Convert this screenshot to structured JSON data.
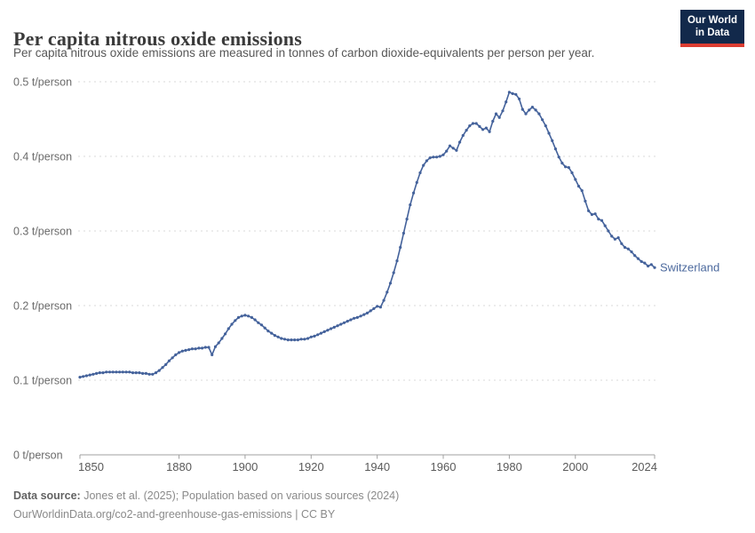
{
  "header": {
    "title": "Per capita nitrous oxide emissions",
    "subtitle": "Per capita nitrous oxide emissions are measured in tonnes of carbon dioxide-equivalents per person per year."
  },
  "logo": {
    "line1": "Our World",
    "line2": "in Data"
  },
  "footer": {
    "datasource_label": "Data source:",
    "datasource_text": " Jones et al. (2025); Population based on various sources (2024)",
    "license_text": "OurWorldinData.org/co2-and-greenhouse-gas-emissions | CC BY"
  },
  "colors": {
    "line": "#44629b",
    "series_label": "#4d6a9e",
    "gridline": "#dadada",
    "axis": "#a0a0a0",
    "tick_label": "#6b6b6b",
    "logo_bg": "#12294b",
    "logo_red": "#dc3d32"
  },
  "chart_data": {
    "type": "line",
    "title": "Per capita nitrous oxide emissions",
    "unit": "t/person",
    "xlabel": "",
    "ylabel": "t/person",
    "grid": true,
    "legend_position": "end-of-line",
    "xlim": [
      1850,
      2024
    ],
    "ylim": [
      0,
      0.5
    ],
    "x_ticks": [
      1850,
      1880,
      1900,
      1920,
      1940,
      1960,
      1980,
      2000,
      2024
    ],
    "y_ticks": [
      {
        "value": 0,
        "label": "0 t/person"
      },
      {
        "value": 0.1,
        "label": "0.1 t/person"
      },
      {
        "value": 0.2,
        "label": "0.2 t/person"
      },
      {
        "value": 0.3,
        "label": "0.3 t/person"
      },
      {
        "value": 0.4,
        "label": "0.4 t/person"
      },
      {
        "value": 0.5,
        "label": "0.5 t/person"
      }
    ],
    "series": [
      {
        "name": "Switzerland",
        "color": "#44629b",
        "points": [
          [
            1850,
            0.104
          ],
          [
            1851,
            0.105
          ],
          [
            1852,
            0.106
          ],
          [
            1853,
            0.107
          ],
          [
            1854,
            0.108
          ],
          [
            1855,
            0.109
          ],
          [
            1856,
            0.11
          ],
          [
            1857,
            0.11
          ],
          [
            1858,
            0.111
          ],
          [
            1859,
            0.111
          ],
          [
            1860,
            0.111
          ],
          [
            1861,
            0.111
          ],
          [
            1862,
            0.111
          ],
          [
            1863,
            0.111
          ],
          [
            1864,
            0.111
          ],
          [
            1865,
            0.111
          ],
          [
            1866,
            0.11
          ],
          [
            1867,
            0.11
          ],
          [
            1868,
            0.11
          ],
          [
            1869,
            0.109
          ],
          [
            1870,
            0.109
          ],
          [
            1871,
            0.108
          ],
          [
            1872,
            0.108
          ],
          [
            1873,
            0.11
          ],
          [
            1874,
            0.113
          ],
          [
            1875,
            0.117
          ],
          [
            1876,
            0.121
          ],
          [
            1877,
            0.126
          ],
          [
            1878,
            0.13
          ],
          [
            1879,
            0.134
          ],
          [
            1880,
            0.137
          ],
          [
            1881,
            0.139
          ],
          [
            1882,
            0.14
          ],
          [
            1883,
            0.141
          ],
          [
            1884,
            0.142
          ],
          [
            1885,
            0.142
          ],
          [
            1886,
            0.143
          ],
          [
            1887,
            0.143
          ],
          [
            1888,
            0.144
          ],
          [
            1889,
            0.144
          ],
          [
            1890,
            0.134
          ],
          [
            1891,
            0.145
          ],
          [
            1892,
            0.15
          ],
          [
            1893,
            0.156
          ],
          [
            1894,
            0.162
          ],
          [
            1895,
            0.169
          ],
          [
            1896,
            0.175
          ],
          [
            1897,
            0.18
          ],
          [
            1898,
            0.184
          ],
          [
            1899,
            0.186
          ],
          [
            1900,
            0.187
          ],
          [
            1901,
            0.186
          ],
          [
            1902,
            0.184
          ],
          [
            1903,
            0.181
          ],
          [
            1904,
            0.177
          ],
          [
            1905,
            0.174
          ],
          [
            1906,
            0.17
          ],
          [
            1907,
            0.166
          ],
          [
            1908,
            0.163
          ],
          [
            1909,
            0.16
          ],
          [
            1910,
            0.158
          ],
          [
            1911,
            0.156
          ],
          [
            1912,
            0.155
          ],
          [
            1913,
            0.154
          ],
          [
            1914,
            0.154
          ],
          [
            1915,
            0.154
          ],
          [
            1916,
            0.154
          ],
          [
            1917,
            0.155
          ],
          [
            1918,
            0.155
          ],
          [
            1919,
            0.156
          ],
          [
            1920,
            0.158
          ],
          [
            1921,
            0.159
          ],
          [
            1922,
            0.161
          ],
          [
            1923,
            0.163
          ],
          [
            1924,
            0.165
          ],
          [
            1925,
            0.167
          ],
          [
            1926,
            0.169
          ],
          [
            1927,
            0.171
          ],
          [
            1928,
            0.173
          ],
          [
            1929,
            0.175
          ],
          [
            1930,
            0.177
          ],
          [
            1931,
            0.179
          ],
          [
            1932,
            0.181
          ],
          [
            1933,
            0.183
          ],
          [
            1934,
            0.184
          ],
          [
            1935,
            0.186
          ],
          [
            1936,
            0.188
          ],
          [
            1937,
            0.19
          ],
          [
            1938,
            0.193
          ],
          [
            1939,
            0.196
          ],
          [
            1940,
            0.199
          ],
          [
            1941,
            0.198
          ],
          [
            1942,
            0.207
          ],
          [
            1943,
            0.218
          ],
          [
            1944,
            0.23
          ],
          [
            1945,
            0.244
          ],
          [
            1946,
            0.26
          ],
          [
            1947,
            0.278
          ],
          [
            1948,
            0.297
          ],
          [
            1949,
            0.316
          ],
          [
            1950,
            0.335
          ],
          [
            1951,
            0.351
          ],
          [
            1952,
            0.365
          ],
          [
            1953,
            0.378
          ],
          [
            1954,
            0.388
          ],
          [
            1955,
            0.394
          ],
          [
            1956,
            0.398
          ],
          [
            1957,
            0.399
          ],
          [
            1958,
            0.399
          ],
          [
            1959,
            0.4
          ],
          [
            1960,
            0.402
          ],
          [
            1961,
            0.407
          ],
          [
            1962,
            0.414
          ],
          [
            1963,
            0.411
          ],
          [
            1964,
            0.408
          ],
          [
            1965,
            0.419
          ],
          [
            1966,
            0.428
          ],
          [
            1967,
            0.435
          ],
          [
            1968,
            0.441
          ],
          [
            1969,
            0.444
          ],
          [
            1970,
            0.444
          ],
          [
            1971,
            0.44
          ],
          [
            1972,
            0.436
          ],
          [
            1973,
            0.438
          ],
          [
            1974,
            0.433
          ],
          [
            1975,
            0.447
          ],
          [
            1976,
            0.457
          ],
          [
            1977,
            0.452
          ],
          [
            1978,
            0.461
          ],
          [
            1979,
            0.473
          ],
          [
            1980,
            0.486
          ],
          [
            1981,
            0.484
          ],
          [
            1982,
            0.483
          ],
          [
            1983,
            0.477
          ],
          [
            1984,
            0.463
          ],
          [
            1985,
            0.457
          ],
          [
            1986,
            0.462
          ],
          [
            1987,
            0.466
          ],
          [
            1988,
            0.462
          ],
          [
            1989,
            0.457
          ],
          [
            1990,
            0.449
          ],
          [
            1991,
            0.441
          ],
          [
            1992,
            0.431
          ],
          [
            1993,
            0.421
          ],
          [
            1994,
            0.41
          ],
          [
            1995,
            0.399
          ],
          [
            1996,
            0.391
          ],
          [
            1997,
            0.386
          ],
          [
            1998,
            0.385
          ],
          [
            1999,
            0.378
          ],
          [
            2000,
            0.369
          ],
          [
            2001,
            0.36
          ],
          [
            2002,
            0.354
          ],
          [
            2003,
            0.34
          ],
          [
            2004,
            0.327
          ],
          [
            2005,
            0.322
          ],
          [
            2006,
            0.323
          ],
          [
            2007,
            0.316
          ],
          [
            2008,
            0.314
          ],
          [
            2009,
            0.307
          ],
          [
            2010,
            0.3
          ],
          [
            2011,
            0.293
          ],
          [
            2012,
            0.289
          ],
          [
            2013,
            0.291
          ],
          [
            2014,
            0.283
          ],
          [
            2015,
            0.278
          ],
          [
            2016,
            0.276
          ],
          [
            2017,
            0.272
          ],
          [
            2018,
            0.267
          ],
          [
            2019,
            0.263
          ],
          [
            2020,
            0.259
          ],
          [
            2021,
            0.257
          ],
          [
            2022,
            0.253
          ],
          [
            2023,
            0.255
          ],
          [
            2024,
            0.251
          ]
        ]
      }
    ]
  }
}
